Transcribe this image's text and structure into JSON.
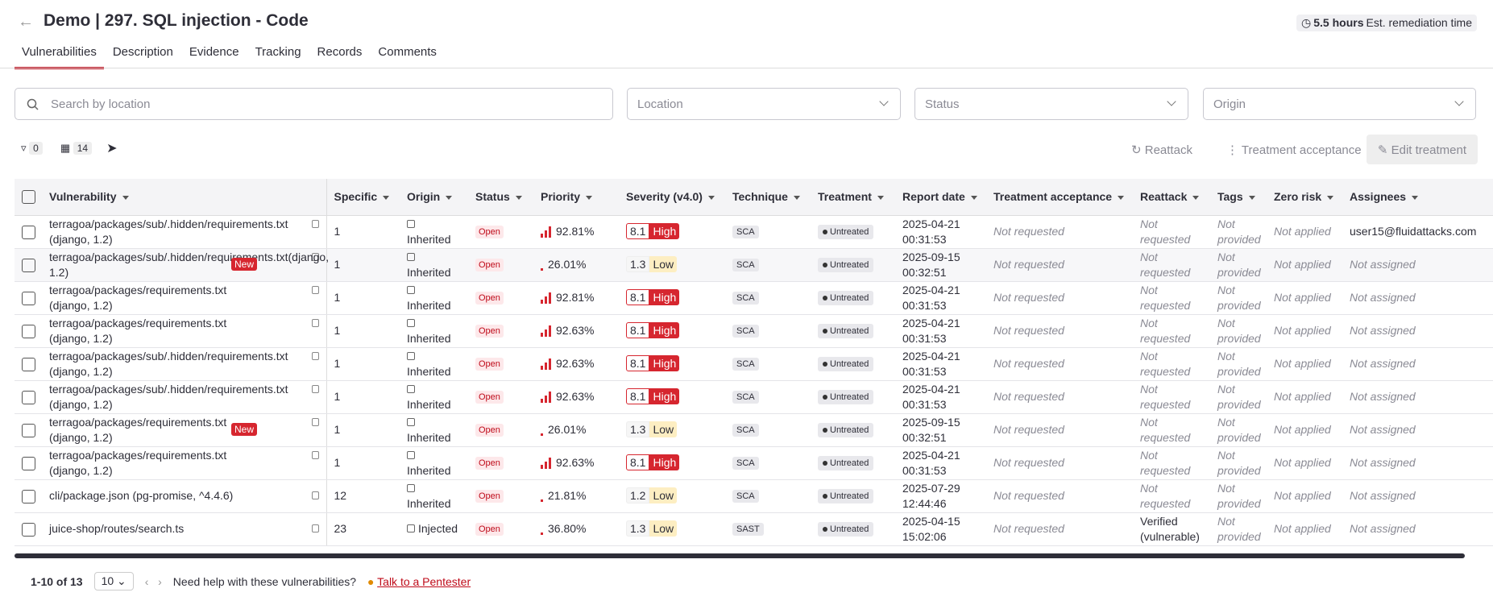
{
  "header": {
    "title": "Demo | 297. SQL injection - Code",
    "remediation_hours": "5.5 hours",
    "remediation_label": "Est. remediation time"
  },
  "tabs": [
    "Vulnerabilities",
    "Description",
    "Evidence",
    "Tracking",
    "Records",
    "Comments"
  ],
  "filters": {
    "search": "Search by location",
    "location": "Location",
    "status": "Status",
    "origin": "Origin"
  },
  "toolbar": {
    "filter_count": "0",
    "column_count": "14",
    "reattack": "Reattack",
    "treatment_acceptance": "Treatment acceptance",
    "edit_treatment": "Edit treatment"
  },
  "table": {
    "columns": [
      "Vulnerability",
      "Specific",
      "Origin",
      "Status",
      "Priority",
      "Severity (v4.0)",
      "Technique",
      "Treatment",
      "Report date",
      "Treatment acceptance",
      "Reattack",
      "Tags",
      "Zero risk",
      "Assignees"
    ],
    "rows": [
      {
        "vulnerability": "terragoa/packages/sub/.hidden/requirements.txt (django, 1.2)",
        "specific": "1",
        "origin": "Inherited",
        "status": "Open",
        "priority": "92.81%",
        "score": "8.1",
        "severity": "High",
        "technique": "SCA",
        "treatment": "Untreated",
        "report_date": "2025-04-21 00:31:53",
        "acceptance": "Not requested",
        "reattack": "Not requested",
        "tags": "Not provided",
        "zero_risk": "Not applied",
        "assignees": "user15@fluidattacks.com"
      },
      {
        "vulnerability": "terragoa/packages/sub/.hidden/requirements.txt(django, 1.2)",
        "badge": "New",
        "specific": "1",
        "origin": "Inherited",
        "status": "Open",
        "priority": "26.01%",
        "score": "1.3",
        "severity": "Low",
        "technique": "SCA",
        "treatment": "Untreated",
        "report_date": "2025-09-15 00:32:51",
        "acceptance": "Not requested",
        "reattack": "Not requested",
        "tags": "Not provided",
        "zero_risk": "Not applied",
        "assignees": "Not assigned"
      },
      {
        "vulnerability": "terragoa/packages/requirements.txt (django, 1.2)",
        "specific": "1",
        "origin": "Inherited",
        "status": "Open",
        "priority": "92.81%",
        "score": "8.1",
        "severity": "High",
        "technique": "SCA",
        "treatment": "Untreated",
        "report_date": "2025-04-21 00:31:53",
        "acceptance": "Not requested",
        "reattack": "Not requested",
        "tags": "Not provided",
        "zero_risk": "Not applied",
        "assignees": "Not assigned"
      },
      {
        "vulnerability": "terragoa/packages/requirements.txt (django, 1.2)",
        "specific": "1",
        "origin": "Inherited",
        "status": "Open",
        "priority": "92.63%",
        "score": "8.1",
        "severity": "High",
        "technique": "SCA",
        "treatment": "Untreated",
        "report_date": "2025-04-21 00:31:53",
        "acceptance": "Not requested",
        "reattack": "Not requested",
        "tags": "Not provided",
        "zero_risk": "Not applied",
        "assignees": "Not assigned"
      },
      {
        "vulnerability": "terragoa/packages/sub/.hidden/requirements.txt (django, 1.2)",
        "specific": "1",
        "origin": "Inherited",
        "status": "Open",
        "priority": "92.63%",
        "score": "8.1",
        "severity": "High",
        "technique": "SCA",
        "treatment": "Untreated",
        "report_date": "2025-04-21 00:31:53",
        "acceptance": "Not requested",
        "reattack": "Not requested",
        "tags": "Not provided",
        "zero_risk": "Not applied",
        "assignees": "Not assigned"
      },
      {
        "vulnerability": "terragoa/packages/sub/.hidden/requirements.txt (django, 1.2)",
        "specific": "1",
        "origin": "Inherited",
        "status": "Open",
        "priority": "92.63%",
        "score": "8.1",
        "severity": "High",
        "technique": "SCA",
        "treatment": "Untreated",
        "report_date": "2025-04-21 00:31:53",
        "acceptance": "Not requested",
        "reattack": "Not requested",
        "tags": "Not provided",
        "zero_risk": "Not applied",
        "assignees": "Not assigned"
      },
      {
        "vulnerability": "terragoa/packages/requirements.txt (django, 1.2)",
        "badge": "New",
        "specific": "1",
        "origin": "Inherited",
        "status": "Open",
        "priority": "26.01%",
        "score": "1.3",
        "severity": "Low",
        "technique": "SCA",
        "treatment": "Untreated",
        "report_date": "2025-09-15 00:32:51",
        "acceptance": "Not requested",
        "reattack": "Not requested",
        "tags": "Not provided",
        "zero_risk": "Not applied",
        "assignees": "Not assigned"
      },
      {
        "vulnerability": "terragoa/packages/requirements.txt (django, 1.2)",
        "specific": "1",
        "origin": "Inherited",
        "status": "Open",
        "priority": "92.63%",
        "score": "8.1",
        "severity": "High",
        "technique": "SCA",
        "treatment": "Untreated",
        "report_date": "2025-04-21 00:31:53",
        "acceptance": "Not requested",
        "reattack": "Not requested",
        "tags": "Not provided",
        "zero_risk": "Not applied",
        "assignees": "Not assigned"
      },
      {
        "vulnerability": "cli/package.json (pg-promise, ^4.4.6)",
        "specific": "12",
        "origin": "Inherited",
        "status": "Open",
        "priority": "21.81%",
        "score": "1.2",
        "severity": "Low",
        "technique": "SCA",
        "treatment": "Untreated",
        "report_date": "2025-07-29 12:44:46",
        "acceptance": "Not requested",
        "reattack": "Not requested",
        "tags": "Not provided",
        "zero_risk": "Not applied",
        "assignees": "Not assigned"
      },
      {
        "vulnerability": "juice-shop/routes/search.ts",
        "specific": "23",
        "origin": "Injected",
        "status": "Open",
        "priority": "36.80%",
        "score": "1.3",
        "severity": "Low",
        "technique": "SAST",
        "treatment": "Untreated",
        "report_date": "2025-04-15 15:02:06",
        "acceptance": "Not requested",
        "reattack": "Verified (vulnerable)",
        "tags": "Not provided",
        "zero_risk": "Not applied",
        "assignees": "Not assigned"
      }
    ]
  },
  "footer": {
    "range": "1-10 of 13",
    "page_size": "10",
    "help": "Need help with these vulnerabilities?",
    "link": "Talk to a Pentester"
  }
}
